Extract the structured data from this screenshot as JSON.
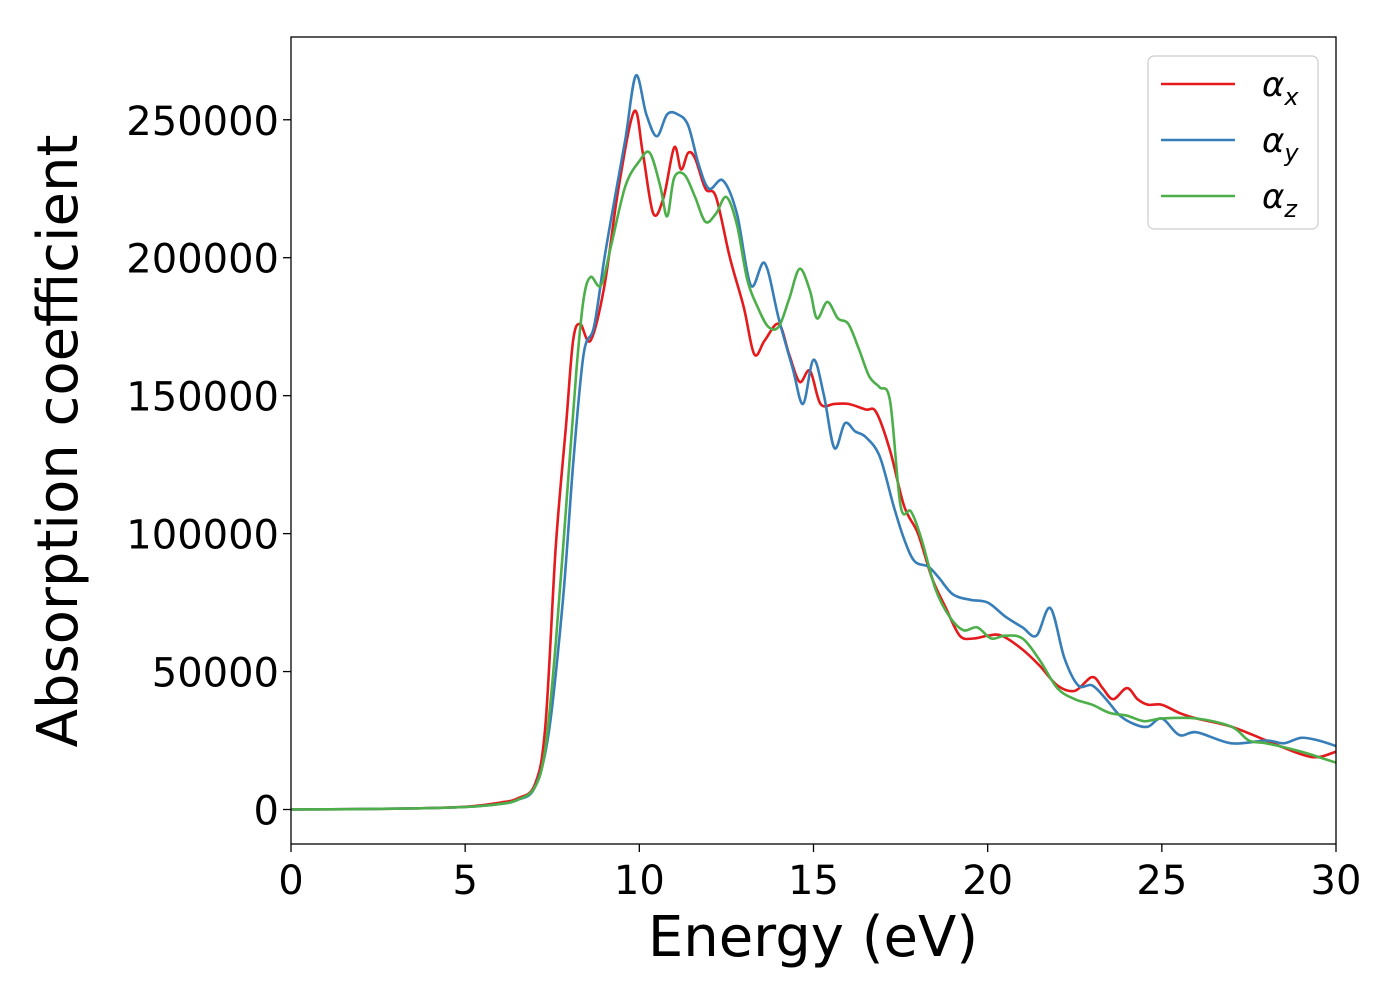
{
  "chart_data": {
    "type": "line",
    "title": "",
    "xlabel": "Energy (eV)",
    "ylabel": "Absorption coefficient",
    "xlim": [
      0,
      30
    ],
    "ylim": [
      -12500,
      280000
    ],
    "xticks": [
      0,
      5,
      10,
      15,
      20,
      25,
      30
    ],
    "yticks": [
      0,
      50000,
      100000,
      150000,
      200000,
      250000
    ],
    "grid": false,
    "legend_position": "top-right",
    "series": [
      {
        "name": "α",
        "name_sub": "x",
        "color": "#e41a1c",
        "x": [
          0,
          3,
          5,
          6,
          6.5,
          7,
          7.3,
          7.6,
          7.9,
          8.1,
          8.3,
          8.6,
          9.0,
          9.4,
          9.85,
          10.1,
          10.4,
          10.7,
          11.0,
          11.2,
          11.4,
          11.6,
          11.9,
          12.2,
          12.6,
          13.0,
          13.3,
          13.6,
          14.0,
          14.3,
          14.6,
          14.9,
          15.2,
          15.6,
          16.0,
          16.5,
          16.8,
          17.2,
          17.6,
          18.0,
          18.4,
          18.8,
          19.2,
          19.6,
          20.0,
          20.4,
          21.0,
          21.5,
          22.0,
          22.5,
          23.0,
          23.3,
          23.6,
          24.0,
          24.3,
          24.6,
          25.0,
          25.5,
          26.0,
          27.0,
          28.0,
          29.0,
          29.5,
          30.0
        ],
        "y": [
          0,
          300,
          1000,
          2500,
          4000,
          9000,
          30000,
          95000,
          140000,
          170000,
          176000,
          170000,
          190000,
          225000,
          253000,
          238000,
          216000,
          222000,
          240000,
          232000,
          238000,
          236000,
          225000,
          222000,
          200000,
          182000,
          165000,
          170000,
          176000,
          165000,
          155000,
          159000,
          147000,
          147000,
          147000,
          145000,
          144000,
          130000,
          110000,
          100000,
          84000,
          73000,
          63000,
          62000,
          63000,
          63000,
          58000,
          52000,
          45000,
          43000,
          48000,
          44000,
          40000,
          44000,
          40000,
          38000,
          38000,
          35000,
          33000,
          30000,
          25000,
          20000,
          19000,
          21000
        ]
      },
      {
        "name": "α",
        "name_sub": "y",
        "color": "#377eb8",
        "x": [
          0,
          3,
          5,
          6,
          6.5,
          7,
          7.4,
          7.8,
          8.1,
          8.4,
          8.7,
          9.0,
          9.3,
          9.6,
          9.9,
          10.2,
          10.5,
          10.8,
          11.1,
          11.4,
          11.7,
          12.0,
          12.4,
          12.8,
          13.2,
          13.6,
          14.0,
          14.4,
          14.7,
          15.0,
          15.3,
          15.6,
          15.9,
          16.2,
          16.5,
          16.9,
          17.3,
          17.6,
          17.9,
          18.3,
          18.6,
          19.0,
          19.5,
          20.0,
          20.5,
          21.0,
          21.4,
          21.8,
          22.2,
          22.6,
          23.0,
          23.4,
          23.8,
          24.2,
          24.6,
          25.0,
          25.5,
          26.0,
          27.0,
          28.0,
          28.5,
          29.0,
          29.5,
          30.0
        ],
        "y": [
          0,
          300,
          900,
          2000,
          3500,
          8000,
          28000,
          75000,
          125000,
          165000,
          175000,
          200000,
          222000,
          243000,
          266000,
          252000,
          244000,
          252000,
          252000,
          248000,
          234000,
          225000,
          228000,
          216000,
          190000,
          198000,
          178000,
          160000,
          147000,
          163000,
          150000,
          131000,
          140000,
          137000,
          135000,
          128000,
          110000,
          98000,
          90000,
          88000,
          84000,
          78000,
          76000,
          75000,
          70000,
          66000,
          63000,
          73000,
          55000,
          45000,
          45000,
          40000,
          34000,
          31000,
          30000,
          33000,
          27000,
          28000,
          24000,
          25000,
          24000,
          26000,
          25000,
          23000
        ]
      },
      {
        "name": "α",
        "name_sub": "z",
        "color": "#4daf4a",
        "x": [
          0,
          3,
          5,
          6,
          6.5,
          7,
          7.3,
          7.6,
          7.9,
          8.2,
          8.4,
          8.6,
          8.9,
          9.2,
          9.6,
          10.0,
          10.3,
          10.6,
          10.8,
          11.0,
          11.3,
          11.6,
          11.9,
          12.2,
          12.5,
          12.8,
          13.1,
          13.4,
          13.7,
          14.0,
          14.3,
          14.6,
          14.9,
          15.1,
          15.4,
          15.7,
          16.0,
          16.3,
          16.6,
          16.9,
          17.2,
          17.5,
          17.8,
          18.1,
          18.5,
          18.9,
          19.3,
          19.7,
          20.1,
          20.5,
          21.0,
          21.5,
          22.0,
          22.5,
          23.0,
          23.5,
          24.0,
          24.5,
          25.0,
          26.0,
          27.0,
          27.5,
          28.0,
          29.0,
          29.5,
          30.0
        ],
        "y": [
          0,
          300,
          900,
          2000,
          3500,
          8000,
          22000,
          60000,
          110000,
          160000,
          185000,
          193000,
          190000,
          205000,
          226000,
          235000,
          238000,
          226000,
          215000,
          229000,
          230000,
          222000,
          213000,
          216000,
          222000,
          212000,
          192000,
          182000,
          175000,
          175000,
          185000,
          196000,
          188000,
          178000,
          184000,
          178000,
          176000,
          167000,
          157000,
          153000,
          148000,
          110000,
          108000,
          98000,
          80000,
          70000,
          65000,
          66000,
          62000,
          63000,
          62000,
          54000,
          44000,
          40000,
          38000,
          35000,
          34000,
          32000,
          33000,
          33000,
          30000,
          25000,
          24000,
          21000,
          19000,
          17000
        ]
      }
    ]
  }
}
